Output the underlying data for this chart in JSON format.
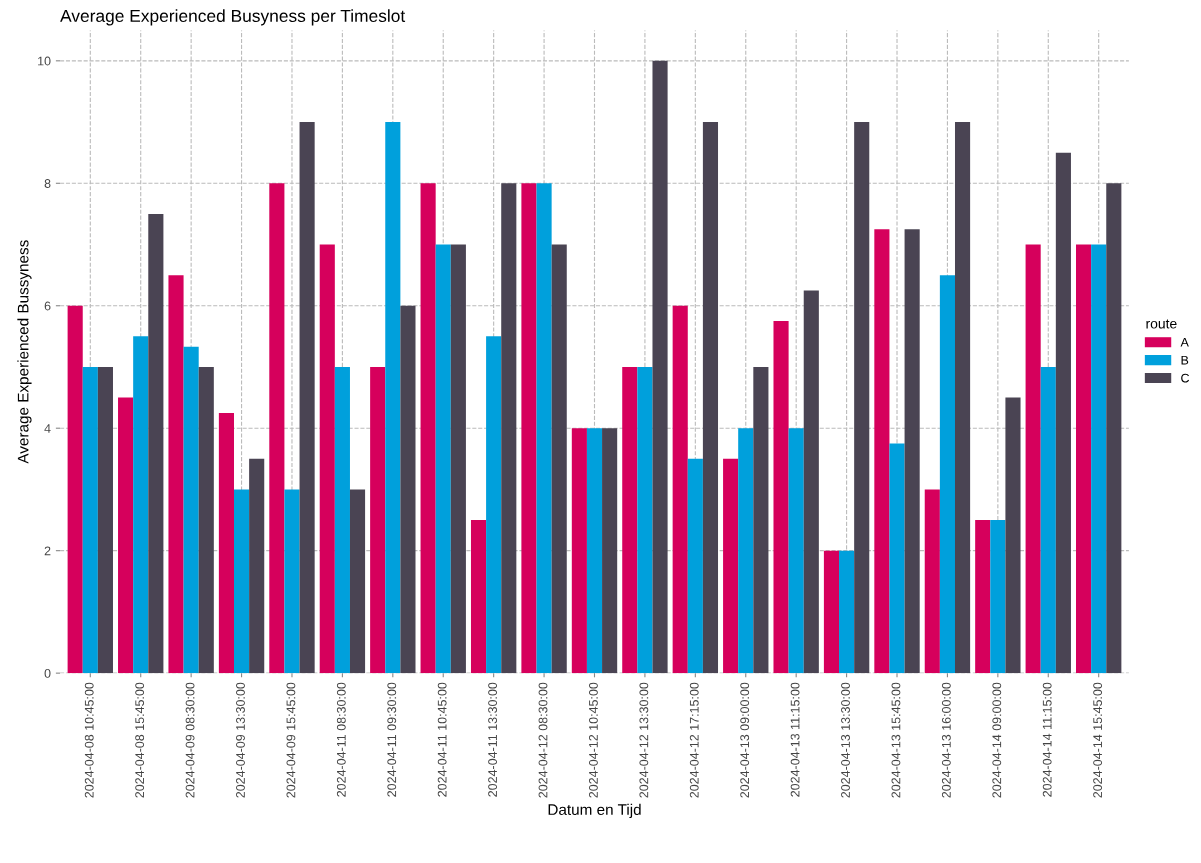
{
  "chart_data": {
    "type": "bar",
    "title": "Average Experienced Busyness per Timeslot",
    "xlabel": "Datum en Tijd",
    "ylabel": "Average Experienced Bussyness",
    "legend_title": "route",
    "categories": [
      "2024-04-08 10:45:00",
      "2024-04-08 15:45:00",
      "2024-04-09 08:30:00",
      "2024-04-09 13:30:00",
      "2024-04-09 15:45:00",
      "2024-04-11 08:30:00",
      "2024-04-11 09:30:00",
      "2024-04-11 10:45:00",
      "2024-04-11 13:30:00",
      "2024-04-12 08:30:00",
      "2024-04-12 10:45:00",
      "2024-04-12 13:30:00",
      "2024-04-12 17:15:00",
      "2024-04-13 09:00:00",
      "2024-04-13 11:15:00",
      "2024-04-13 13:30:00",
      "2024-04-13 15:45:00",
      "2024-04-13 16:00:00",
      "2024-04-14 09:00:00",
      "2024-04-14 11:15:00",
      "2024-04-14 15:45:00"
    ],
    "series": [
      {
        "name": "A",
        "color": "#d6005c",
        "values": [
          6,
          4.5,
          6.5,
          4.25,
          8,
          7,
          5,
          8,
          2.5,
          8,
          4,
          5,
          6,
          3.5,
          5.75,
          2,
          7.25,
          3,
          2.5,
          7,
          7
        ]
      },
      {
        "name": "B",
        "color": "#00a0dc",
        "values": [
          5,
          5.5,
          5.33,
          3,
          3,
          5,
          9,
          7,
          5.5,
          8,
          4,
          5,
          3.5,
          4,
          4,
          2,
          3.75,
          6.5,
          2.5,
          5,
          7
        ]
      },
      {
        "name": "C",
        "color": "#4a4453",
        "values": [
          5,
          7.5,
          5,
          3.5,
          9,
          3,
          6,
          7,
          8,
          7,
          4,
          10,
          9,
          5,
          6.25,
          9,
          7.25,
          9,
          4.5,
          8.5,
          8
        ]
      }
    ],
    "ylim": [
      0,
      10.5
    ],
    "yticks": [
      0,
      2,
      4,
      6,
      8,
      10
    ],
    "grid": true,
    "legend": "right"
  }
}
